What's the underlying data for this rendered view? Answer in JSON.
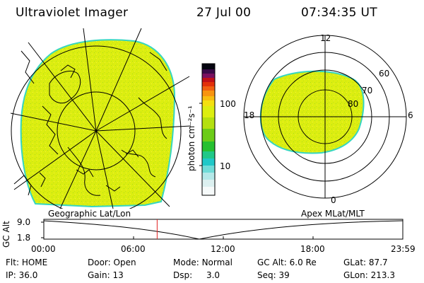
{
  "header": {
    "title": "Ultraviolet Imager",
    "date": "27 Jul 00",
    "time": "07:34:35 UT"
  },
  "colorbar": {
    "unit_label": "photon cm⁻²s⁻¹",
    "ticks": [
      "100",
      "10"
    ],
    "scale": "log"
  },
  "polar_plot": {
    "labels": {
      "top": "12",
      "left": "18",
      "right": "6",
      "bottom": "0"
    },
    "rings": [
      "60",
      "70",
      "80"
    ]
  },
  "captions": {
    "left": "Geographic Lat/Lon",
    "right": "Apex MLat/MLT"
  },
  "timeline": {
    "ylabel": "GC Alt",
    "yticks": [
      "9.0",
      "1.8"
    ],
    "xticks": [
      "00:00",
      "06:00",
      "12:00",
      "18:00",
      "23:59"
    ],
    "marker_fraction": 0.3157
  },
  "status": [
    {
      "label": "Flt:",
      "value": "HOME"
    },
    {
      "label": "IP:",
      "value": "36.0"
    },
    {
      "label": "Door:",
      "value": "Open"
    },
    {
      "label": "Gain:",
      "value": "13"
    },
    {
      "label": "Mode:",
      "value": "Normal"
    },
    {
      "label": "Dsp:",
      "value": "3.0"
    },
    {
      "label": "GC Alt:",
      "value": "6.0 Re"
    },
    {
      "label": "Seq:",
      "value": "39"
    },
    {
      "label": "GLat:",
      "value": "87.7"
    },
    {
      "label": "GLon:",
      "value": "213.3"
    }
  ],
  "colors": {
    "aurora": "#dcee10",
    "edge": "#36d6c0"
  }
}
